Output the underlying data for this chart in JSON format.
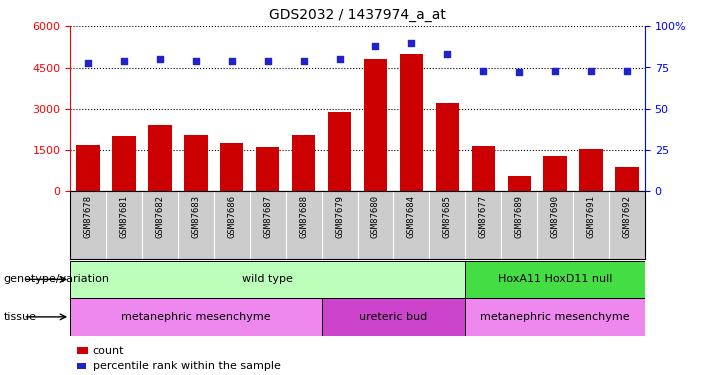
{
  "title": "GDS2032 / 1437974_a_at",
  "samples": [
    "GSM87678",
    "GSM87681",
    "GSM87682",
    "GSM87683",
    "GSM87686",
    "GSM87687",
    "GSM87688",
    "GSM87679",
    "GSM87680",
    "GSM87684",
    "GSM87685",
    "GSM87677",
    "GSM87689",
    "GSM87690",
    "GSM87691",
    "GSM87692"
  ],
  "counts": [
    1700,
    2000,
    2400,
    2050,
    1750,
    1600,
    2050,
    2900,
    4800,
    5000,
    3200,
    1650,
    550,
    1300,
    1550,
    900
  ],
  "percentile": [
    78,
    79,
    80,
    79,
    79,
    79,
    79,
    80,
    88,
    90,
    83,
    73,
    72,
    73,
    73,
    73
  ],
  "ylim_left": [
    0,
    6000
  ],
  "ylim_right": [
    0,
    100
  ],
  "yticks_left": [
    0,
    1500,
    3000,
    4500,
    6000
  ],
  "yticks_right": [
    0,
    25,
    50,
    75,
    100
  ],
  "bar_color": "#cc0000",
  "dot_color": "#2222cc",
  "background_color": "#ffffff",
  "plot_bg_color": "#ffffff",
  "xtick_bg_color": "#cccccc",
  "genotype_groups": [
    {
      "label": "wild type",
      "start": 0,
      "end": 10,
      "color": "#bbffbb"
    },
    {
      "label": "HoxA11 HoxD11 null",
      "start": 11,
      "end": 15,
      "color": "#44dd44"
    }
  ],
  "tissue_groups": [
    {
      "label": "metanephric mesenchyme",
      "start": 0,
      "end": 6,
      "color": "#ee88ee"
    },
    {
      "label": "ureteric bud",
      "start": 7,
      "end": 10,
      "color": "#cc44cc"
    },
    {
      "label": "metanephric mesenchyme",
      "start": 11,
      "end": 15,
      "color": "#ee88ee"
    }
  ],
  "genotype_label": "genotype/variation",
  "tissue_label": "tissue",
  "legend_count_label": "count",
  "legend_pct_label": "percentile rank within the sample"
}
